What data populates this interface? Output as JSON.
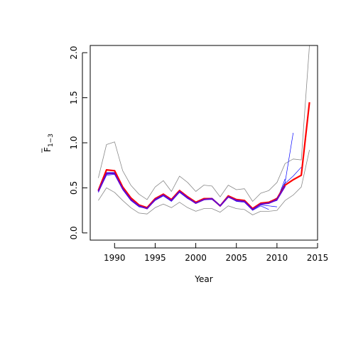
{
  "chart_data": {
    "type": "line",
    "xlabel": "Year",
    "ylabel_main": "F",
    "ylabel_sub": "1−3",
    "xlim": [
      1987,
      2015
    ],
    "ylim": [
      -0.08,
      2.08
    ],
    "x_ticks": [
      1990,
      1995,
      2000,
      2005,
      2010,
      2015
    ],
    "y_ticks": [
      0.0,
      0.5,
      1.0,
      1.5,
      2.0
    ],
    "colors": {
      "upper": "#888888",
      "lower": "#888888",
      "retro": "#0000ff",
      "final": "#ff0000",
      "median": "#6600cc"
    },
    "series": [
      {
        "role": "upper",
        "x": [
          1988,
          1989,
          1990,
          1991,
          1992,
          1993,
          1994,
          1995,
          1996,
          1997,
          1998,
          1999,
          2000,
          2001,
          2002,
          2003,
          2004,
          2005,
          2006,
          2007,
          2008,
          2009,
          2010,
          2011,
          2012,
          2013,
          2014
        ],
        "values": [
          0.61,
          0.98,
          1.01,
          0.69,
          0.53,
          0.43,
          0.37,
          0.51,
          0.58,
          0.46,
          0.63,
          0.56,
          0.46,
          0.53,
          0.52,
          0.4,
          0.53,
          0.48,
          0.49,
          0.35,
          0.44,
          0.47,
          0.56,
          0.77,
          0.82,
          0.81,
          2.08
        ]
      },
      {
        "role": "lower",
        "x": [
          1988,
          1989,
          1990,
          1991,
          1992,
          1993,
          1994,
          1995,
          1996,
          1997,
          1998,
          1999,
          2000,
          2001,
          2002,
          2003,
          2004,
          2005,
          2006,
          2007,
          2008,
          2009,
          2010,
          2011,
          2012,
          2013,
          2014
        ],
        "values": [
          0.36,
          0.5,
          0.45,
          0.36,
          0.28,
          0.22,
          0.21,
          0.28,
          0.32,
          0.28,
          0.34,
          0.28,
          0.24,
          0.27,
          0.27,
          0.23,
          0.3,
          0.27,
          0.26,
          0.2,
          0.24,
          0.24,
          0.25,
          0.36,
          0.42,
          0.51,
          0.92
        ]
      },
      {
        "role": "retro",
        "x": [
          1988,
          1989,
          1990,
          1991,
          1992,
          1993,
          1994,
          1995,
          1996,
          1997,
          1998,
          1999,
          2000,
          2001,
          2002,
          2003,
          2004,
          2005,
          2006,
          2007,
          2008,
          2009
        ],
        "values": [
          0.45,
          0.64,
          0.65,
          0.48,
          0.36,
          0.29,
          0.27,
          0.36,
          0.41,
          0.35,
          0.45,
          0.38,
          0.33,
          0.37,
          0.37,
          0.3,
          0.4,
          0.35,
          0.34,
          0.25,
          0.3,
          0.26
        ]
      },
      {
        "role": "retro",
        "x": [
          1988,
          1989,
          1990,
          1991,
          1992,
          1993,
          1994,
          1995,
          1996,
          1997,
          1998,
          1999,
          2000,
          2001,
          2002,
          2003,
          2004,
          2005,
          2006,
          2007,
          2008,
          2009,
          2010
        ],
        "values": [
          0.46,
          0.65,
          0.66,
          0.49,
          0.37,
          0.3,
          0.27,
          0.37,
          0.42,
          0.36,
          0.46,
          0.39,
          0.33,
          0.37,
          0.38,
          0.3,
          0.4,
          0.36,
          0.35,
          0.26,
          0.31,
          0.3,
          0.29
        ]
      },
      {
        "role": "retro",
        "x": [
          1988,
          1989,
          1990,
          1991,
          1992,
          1993,
          1994,
          1995,
          1996,
          1997,
          1998,
          1999,
          2000,
          2001,
          2002,
          2003,
          2004,
          2005,
          2006,
          2007,
          2008,
          2009,
          2010,
          2011
        ],
        "values": [
          0.46,
          0.66,
          0.67,
          0.5,
          0.38,
          0.3,
          0.28,
          0.37,
          0.42,
          0.36,
          0.46,
          0.4,
          0.34,
          0.37,
          0.38,
          0.3,
          0.4,
          0.36,
          0.35,
          0.26,
          0.32,
          0.33,
          0.36,
          0.6
        ]
      },
      {
        "role": "retro",
        "x": [
          1988,
          1989,
          1990,
          1991,
          1992,
          1993,
          1994,
          1995,
          1996,
          1997,
          1998,
          1999,
          2000,
          2001,
          2002,
          2003,
          2004,
          2005,
          2006,
          2007,
          2008,
          2009,
          2010,
          2011,
          2012
        ],
        "values": [
          0.46,
          0.66,
          0.67,
          0.5,
          0.38,
          0.3,
          0.28,
          0.37,
          0.42,
          0.36,
          0.46,
          0.4,
          0.34,
          0.37,
          0.38,
          0.3,
          0.4,
          0.36,
          0.35,
          0.27,
          0.32,
          0.34,
          0.38,
          0.56,
          1.11
        ]
      },
      {
        "role": "retro",
        "x": [
          1988,
          1989,
          1990,
          1991,
          1992,
          1993,
          1994,
          1995,
          1996,
          1997,
          1998,
          1999,
          2000,
          2001,
          2002,
          2003,
          2004,
          2005,
          2006,
          2007,
          2008,
          2009,
          2010,
          2011,
          2012,
          2013
        ],
        "values": [
          0.46,
          0.67,
          0.67,
          0.5,
          0.38,
          0.3,
          0.28,
          0.37,
          0.43,
          0.36,
          0.46,
          0.4,
          0.34,
          0.38,
          0.38,
          0.3,
          0.4,
          0.37,
          0.35,
          0.27,
          0.33,
          0.34,
          0.39,
          0.55,
          0.63,
          0.73
        ]
      },
      {
        "role": "final",
        "x": [
          1988,
          1989,
          1990,
          1991,
          1992,
          1993,
          1994,
          1995,
          1996,
          1997,
          1998,
          1999,
          2000,
          2001,
          2002,
          2003,
          2004,
          2005,
          2006,
          2007,
          2008,
          2009,
          2010,
          2011,
          2012,
          2013,
          2014
        ],
        "values": [
          0.47,
          0.7,
          0.69,
          0.51,
          0.39,
          0.31,
          0.28,
          0.38,
          0.43,
          0.37,
          0.47,
          0.4,
          0.34,
          0.38,
          0.38,
          0.3,
          0.41,
          0.37,
          0.36,
          0.27,
          0.33,
          0.34,
          0.38,
          0.53,
          0.59,
          0.64,
          1.45
        ]
      },
      {
        "role": "median",
        "x": [
          1988,
          1989,
          1990,
          1991,
          1992,
          1993,
          1994,
          1995,
          1996,
          1997,
          1998,
          1999,
          2000,
          2001,
          2002,
          2003,
          2004,
          2005,
          2006,
          2007,
          2008,
          2009,
          2010,
          2011
        ],
        "values": [
          0.46,
          0.66,
          0.66,
          0.49,
          0.37,
          0.3,
          0.27,
          0.37,
          0.42,
          0.36,
          0.46,
          0.39,
          0.33,
          0.37,
          0.38,
          0.3,
          0.4,
          0.36,
          0.35,
          0.26,
          0.32,
          0.33,
          0.37,
          0.52
        ]
      }
    ]
  }
}
